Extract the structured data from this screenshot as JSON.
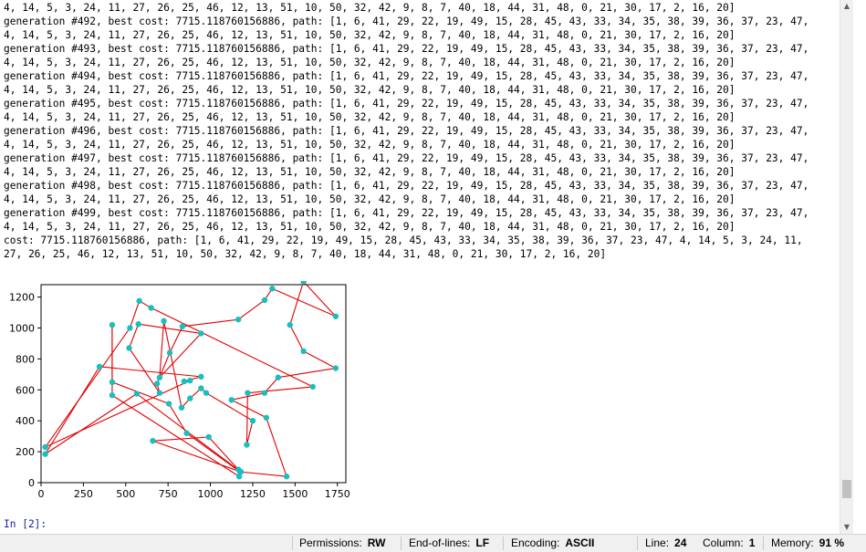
{
  "console": {
    "lines": [
      "4, 14, 5, 3, 24, 11, 27, 26, 25, 46, 12, 13, 51, 10, 50, 32, 42, 9, 8, 7, 40, 18, 44, 31, 48, 0, 21, 30, 17, 2, 16, 20]",
      "generation #492, best cost: 7715.118760156886, path: [1, 6, 41, 29, 22, 19, 49, 15, 28, 45, 43, 33, 34, 35, 38, 39, 36, 37, 23, 47,",
      "4, 14, 5, 3, 24, 11, 27, 26, 25, 46, 12, 13, 51, 10, 50, 32, 42, 9, 8, 7, 40, 18, 44, 31, 48, 0, 21, 30, 17, 2, 16, 20]",
      "generation #493, best cost: 7715.118760156886, path: [1, 6, 41, 29, 22, 19, 49, 15, 28, 45, 43, 33, 34, 35, 38, 39, 36, 37, 23, 47,",
      "4, 14, 5, 3, 24, 11, 27, 26, 25, 46, 12, 13, 51, 10, 50, 32, 42, 9, 8, 7, 40, 18, 44, 31, 48, 0, 21, 30, 17, 2, 16, 20]",
      "generation #494, best cost: 7715.118760156886, path: [1, 6, 41, 29, 22, 19, 49, 15, 28, 45, 43, 33, 34, 35, 38, 39, 36, 37, 23, 47,",
      "4, 14, 5, 3, 24, 11, 27, 26, 25, 46, 12, 13, 51, 10, 50, 32, 42, 9, 8, 7, 40, 18, 44, 31, 48, 0, 21, 30, 17, 2, 16, 20]",
      "generation #495, best cost: 7715.118760156886, path: [1, 6, 41, 29, 22, 19, 49, 15, 28, 45, 43, 33, 34, 35, 38, 39, 36, 37, 23, 47,",
      "4, 14, 5, 3, 24, 11, 27, 26, 25, 46, 12, 13, 51, 10, 50, 32, 42, 9, 8, 7, 40, 18, 44, 31, 48, 0, 21, 30, 17, 2, 16, 20]",
      "generation #496, best cost: 7715.118760156886, path: [1, 6, 41, 29, 22, 19, 49, 15, 28, 45, 43, 33, 34, 35, 38, 39, 36, 37, 23, 47,",
      "4, 14, 5, 3, 24, 11, 27, 26, 25, 46, 12, 13, 51, 10, 50, 32, 42, 9, 8, 7, 40, 18, 44, 31, 48, 0, 21, 30, 17, 2, 16, 20]",
      "generation #497, best cost: 7715.118760156886, path: [1, 6, 41, 29, 22, 19, 49, 15, 28, 45, 43, 33, 34, 35, 38, 39, 36, 37, 23, 47,",
      "4, 14, 5, 3, 24, 11, 27, 26, 25, 46, 12, 13, 51, 10, 50, 32, 42, 9, 8, 7, 40, 18, 44, 31, 48, 0, 21, 30, 17, 2, 16, 20]",
      "generation #498, best cost: 7715.118760156886, path: [1, 6, 41, 29, 22, 19, 49, 15, 28, 45, 43, 33, 34, 35, 38, 39, 36, 37, 23, 47,",
      "4, 14, 5, 3, 24, 11, 27, 26, 25, 46, 12, 13, 51, 10, 50, 32, 42, 9, 8, 7, 40, 18, 44, 31, 48, 0, 21, 30, 17, 2, 16, 20]",
      "generation #499, best cost: 7715.118760156886, path: [1, 6, 41, 29, 22, 19, 49, 15, 28, 45, 43, 33, 34, 35, 38, 39, 36, 37, 23, 47,",
      "4, 14, 5, 3, 24, 11, 27, 26, 25, 46, 12, 13, 51, 10, 50, 32, 42, 9, 8, 7, 40, 18, 44, 31, 48, 0, 21, 30, 17, 2, 16, 20]",
      "cost: 7715.118760156886, path: [1, 6, 41, 29, 22, 19, 49, 15, 28, 45, 43, 33, 34, 35, 38, 39, 36, 37, 23, 47, 4, 14, 5, 3, 24, 11,",
      "27, 26, 25, 46, 12, 13, 51, 10, 50, 32, 42, 9, 8, 7, 40, 18, 44, 31, 48, 0, 21, 30, 17, 2, 16, 20]"
    ],
    "prompt": "In [2]:"
  },
  "chart_data": {
    "type": "line",
    "xlim": [
      0,
      1800
    ],
    "ylim": [
      0,
      1280
    ],
    "xticks": [
      0,
      250,
      500,
      750,
      1000,
      1250,
      1500,
      1750
    ],
    "yticks": [
      0,
      200,
      400,
      600,
      800,
      1000,
      1200
    ],
    "line_color": "#e00000",
    "marker_color": "#18bfbf",
    "grid": false,
    "route": [
      [
        565,
        575
      ],
      [
        25,
        185
      ],
      [
        345,
        750
      ],
      [
        945,
        685
      ],
      [
        845,
        655
      ],
      [
        880,
        660
      ],
      [
        25,
        230
      ],
      [
        525,
        1000
      ],
      [
        580,
        1175
      ],
      [
        650,
        1130
      ],
      [
        1605,
        620
      ],
      [
        1220,
        580
      ],
      [
        1215,
        245
      ],
      [
        1250,
        400
      ],
      [
        975,
        580
      ],
      [
        945,
        610
      ],
      [
        880,
        545
      ],
      [
        830,
        485
      ],
      [
        725,
        1045
      ],
      [
        700,
        680
      ],
      [
        945,
        965
      ],
      [
        575,
        1025
      ],
      [
        520,
        870
      ],
      [
        700,
        580
      ],
      [
        685,
        640
      ],
      [
        760,
        840
      ],
      [
        835,
        1010
      ],
      [
        1165,
        1055
      ],
      [
        1320,
        1180
      ],
      [
        1365,
        1255
      ],
      [
        1740,
        1075
      ],
      [
        1550,
        1300
      ],
      [
        1470,
        1020
      ],
      [
        1550,
        850
      ],
      [
        1740,
        740
      ],
      [
        1400,
        680
      ],
      [
        1320,
        580
      ],
      [
        1125,
        535
      ],
      [
        1330,
        420
      ],
      [
        1450,
        40
      ],
      [
        1175,
        70
      ],
      [
        860,
        320
      ],
      [
        755,
        510
      ],
      [
        420,
        650
      ],
      [
        420,
        1020
      ],
      [
        420,
        565
      ],
      [
        1170,
        40
      ],
      [
        1165,
        85
      ],
      [
        990,
        295
      ],
      [
        660,
        270
      ],
      [
        1180,
        70
      ],
      [
        565,
        575
      ]
    ]
  },
  "statusbar": {
    "permissions_label": "Permissions:",
    "permissions_value": "RW",
    "eol_label": "End-of-lines:",
    "eol_value": "LF",
    "encoding_label": "Encoding:",
    "encoding_value": "ASCII",
    "line_label": "Line:",
    "line_value": "24",
    "column_label": "Column:",
    "column_value": "1",
    "memory_label": "Memory:",
    "memory_value": "91 %"
  }
}
